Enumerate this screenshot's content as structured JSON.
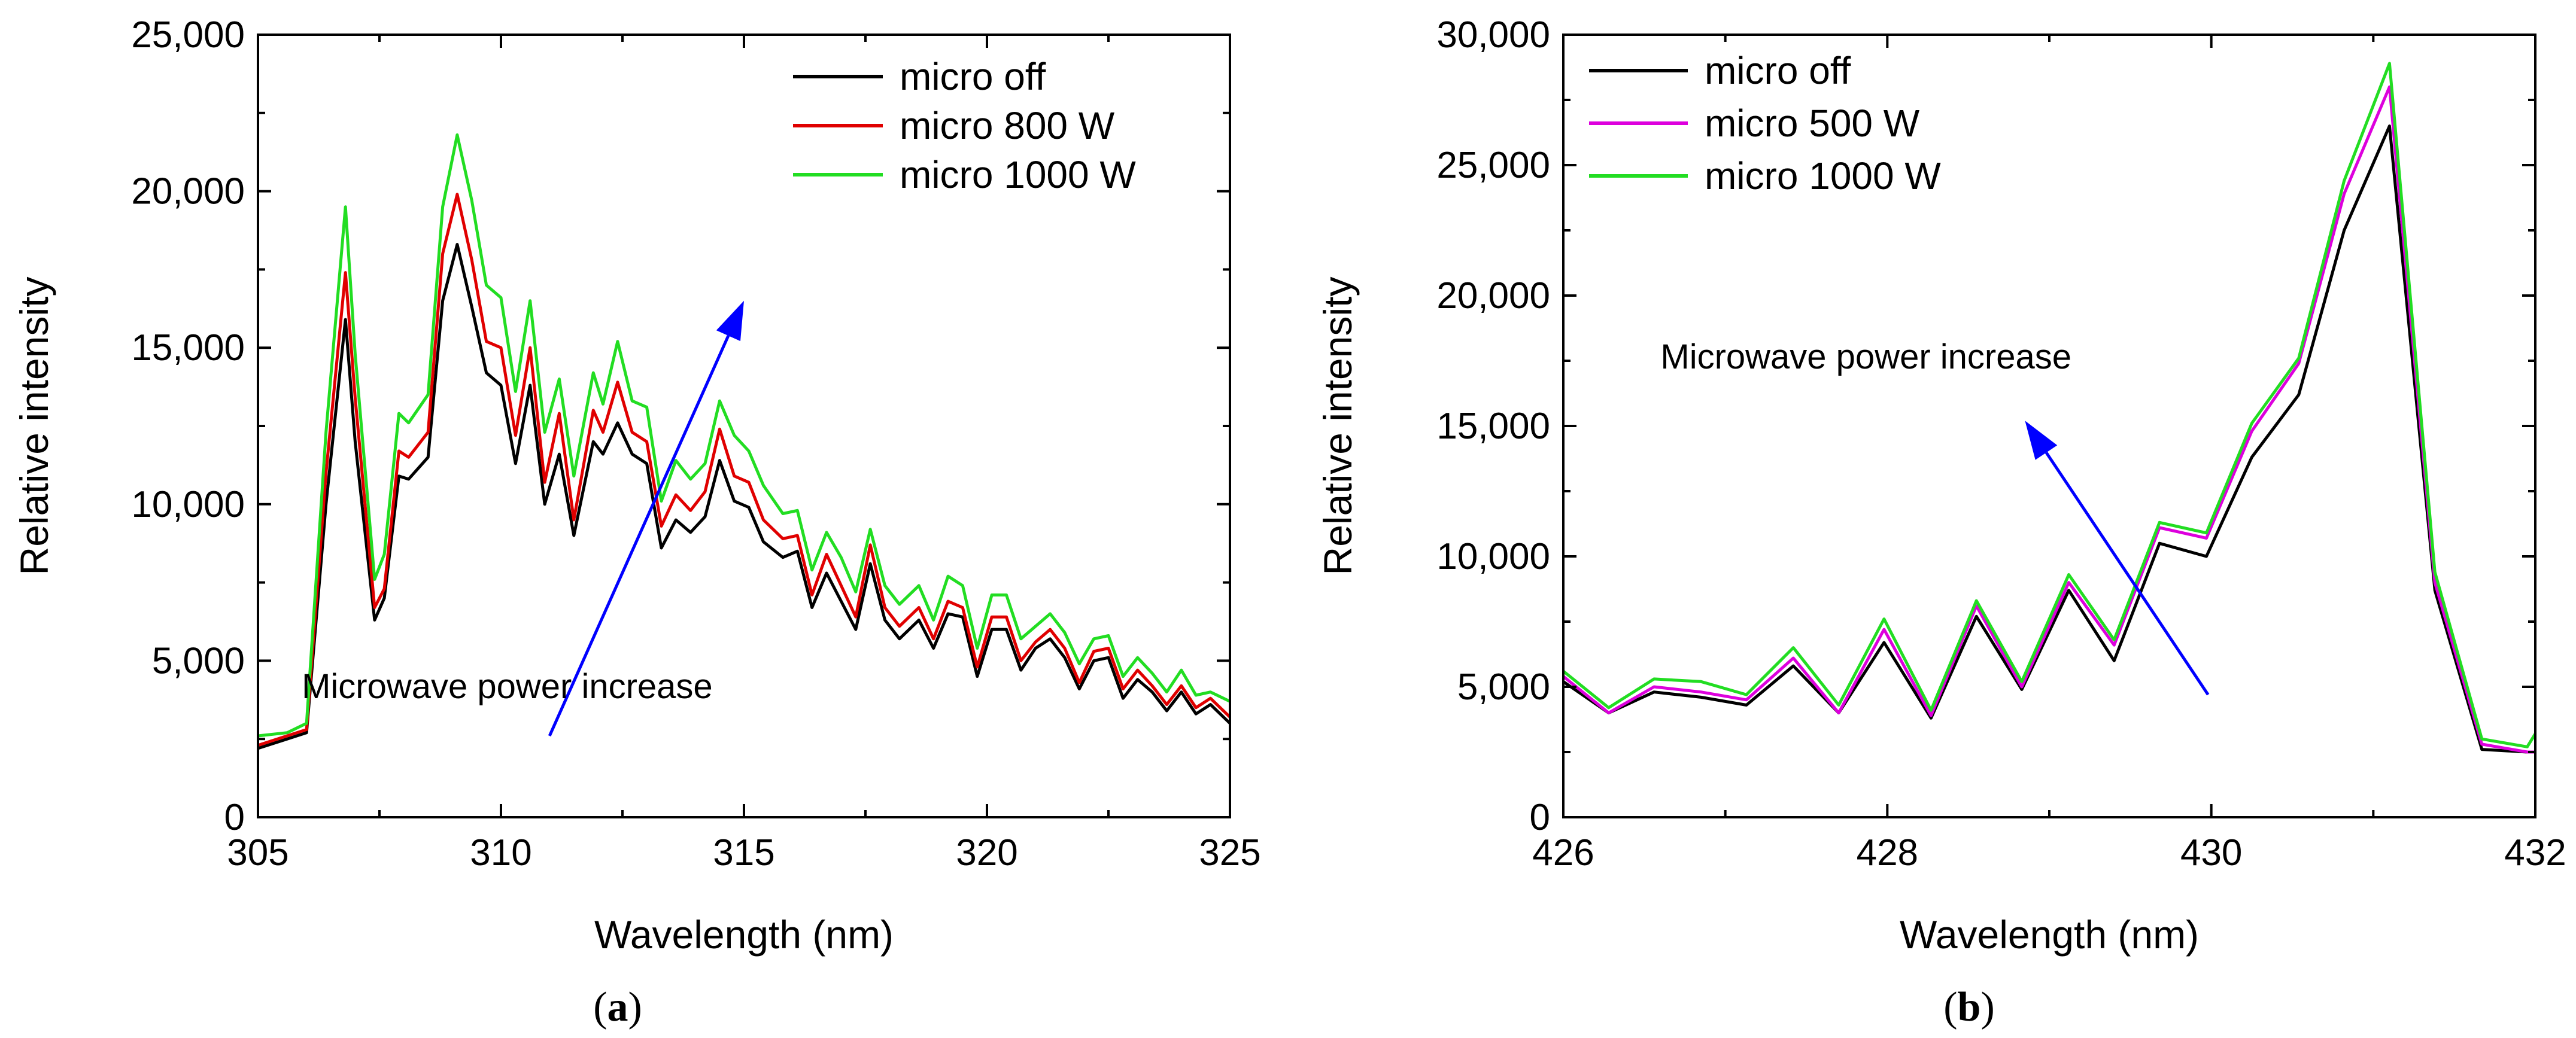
{
  "figure": {
    "panel_labels": [
      "(",
      "a",
      ")",
      "(",
      "b",
      ")"
    ]
  },
  "chart_data": [
    {
      "type": "line",
      "panel": "a",
      "xlabel": "Wavelength (nm)",
      "ylabel": "Relative intensity",
      "xlim": [
        305,
        325
      ],
      "ylim": [
        0,
        25000
      ],
      "xticks": [
        305,
        310,
        315,
        320,
        325
      ],
      "xtick_labels": [
        "305",
        "310",
        "315",
        "320",
        "325"
      ],
      "yticks": [
        0,
        5000,
        10000,
        15000,
        20000,
        25000
      ],
      "ytick_labels": [
        "0",
        "5,000",
        "10,000",
        "15,000",
        "20,000",
        "25,000"
      ],
      "legend_position": "top-right",
      "annotation": {
        "text": "Microwave power increase",
        "arrow_from": [
          311.0,
          2600
        ],
        "arrow_to": [
          315.0,
          16500
        ],
        "text_at": [
          305.9,
          3800
        ],
        "color": "#0000ff"
      },
      "x": [
        305.0,
        305.6,
        306.0,
        306.4,
        306.8,
        307.0,
        307.4,
        307.6,
        307.9,
        308.1,
        308.5,
        308.8,
        309.1,
        309.4,
        309.7,
        310.0,
        310.3,
        310.6,
        310.9,
        311.2,
        311.5,
        311.9,
        312.1,
        312.4,
        312.7,
        313.0,
        313.3,
        313.6,
        313.9,
        314.2,
        314.5,
        314.8,
        315.1,
        315.4,
        315.8,
        316.1,
        316.4,
        316.7,
        317.0,
        317.3,
        317.6,
        317.9,
        318.2,
        318.6,
        318.9,
        319.2,
        319.5,
        319.8,
        320.1,
        320.4,
        320.7,
        321.0,
        321.3,
        321.6,
        321.9,
        322.2,
        322.5,
        322.8,
        323.1,
        323.4,
        323.7,
        324.0,
        324.3,
        324.6,
        325.0
      ],
      "series": [
        {
          "name": "micro off",
          "color": "#000000",
          "values": [
            2200,
            2500,
            2700,
            10000,
            15900,
            12000,
            6300,
            7000,
            10900,
            10800,
            11500,
            16500,
            18300,
            16300,
            14200,
            13800,
            11300,
            13800,
            10000,
            11600,
            9000,
            12000,
            11600,
            12600,
            11600,
            11300,
            8600,
            9500,
            9100,
            9600,
            11400,
            10100,
            9900,
            8800,
            8300,
            8500,
            6700,
            7800,
            6900,
            6000,
            8100,
            6300,
            5700,
            6300,
            5400,
            6500,
            6400,
            4500,
            6000,
            6000,
            4700,
            5400,
            5700,
            5100,
            4100,
            5000,
            5100,
            3800,
            4400,
            4000,
            3400,
            4000,
            3300,
            3600,
            3000
          ]
        },
        {
          "name": "micro 800 W",
          "color": "#e00000",
          "values": [
            2300,
            2600,
            2800,
            11000,
            17400,
            13400,
            6700,
            7300,
            11700,
            11500,
            12300,
            18000,
            19900,
            17800,
            15200,
            15000,
            12200,
            15000,
            10700,
            12900,
            9500,
            13000,
            12300,
            13900,
            12300,
            12000,
            9300,
            10300,
            9800,
            10400,
            12400,
            10900,
            10700,
            9500,
            8900,
            9000,
            7100,
            8400,
            7400,
            6400,
            8700,
            6700,
            6100,
            6700,
            5700,
            6900,
            6700,
            4800,
            6400,
            6400,
            5000,
            5600,
            6000,
            5400,
            4300,
            5300,
            5400,
            4100,
            4700,
            4200,
            3600,
            4200,
            3500,
            3800,
            3200
          ]
        },
        {
          "name": "micro 1000 W",
          "color": "#22dd22",
          "values": [
            2600,
            2700,
            3000,
            12300,
            19500,
            14800,
            7600,
            8400,
            12900,
            12600,
            13500,
            19500,
            21800,
            19700,
            17000,
            16600,
            13600,
            16500,
            12300,
            14000,
            10900,
            14200,
            13200,
            15200,
            13300,
            13100,
            10100,
            11400,
            10800,
            11300,
            13300,
            12200,
            11700,
            10600,
            9700,
            9800,
            7900,
            9100,
            8300,
            7200,
            9200,
            7400,
            6800,
            7400,
            6300,
            7700,
            7400,
            5400,
            7100,
            7100,
            5700,
            6100,
            6500,
            5900,
            4900,
            5700,
            5800,
            4500,
            5100,
            4600,
            4000,
            4700,
            3900,
            4000,
            3700
          ]
        }
      ]
    },
    {
      "type": "line",
      "panel": "b",
      "xlabel": "Wavelength (nm)",
      "ylabel": "Relative intensity",
      "xlim": [
        426,
        432
      ],
      "ylim": [
        0,
        30000
      ],
      "xticks": [
        426,
        428,
        430,
        432
      ],
      "xtick_labels": [
        "426",
        "428",
        "430",
        "432"
      ],
      "yticks": [
        0,
        5000,
        10000,
        15000,
        20000,
        25000,
        30000
      ],
      "ytick_labels": [
        "0",
        "5,000",
        "10,000",
        "15,000",
        "20,000",
        "25,000",
        "30,000"
      ],
      "legend_position": "top-left",
      "annotation": {
        "text": "Microwave power increase",
        "arrow_from": [
          429.98,
          4700
        ],
        "arrow_to": [
          428.85,
          15200
        ],
        "text_at": [
          426.6,
          17200
        ],
        "color": "#0000ff"
      },
      "x": [
        426.0,
        426.28,
        426.56,
        426.85,
        427.13,
        427.42,
        427.7,
        427.98,
        428.27,
        428.55,
        428.83,
        429.12,
        429.4,
        429.68,
        429.97,
        430.25,
        430.54,
        430.82,
        431.1,
        431.38,
        431.67,
        431.95,
        432.0
      ],
      "series": [
        {
          "name": "micro off",
          "color": "#000000",
          "values": [
            5200,
            4000,
            4800,
            4600,
            4300,
            5800,
            4000,
            6700,
            3800,
            7700,
            4900,
            8700,
            6000,
            10500,
            10000,
            13800,
            16200,
            22500,
            26500,
            8700,
            2600,
            2500,
            2500
          ]
        },
        {
          "name": "micro 500 W",
          "color": "#dd00dd",
          "values": [
            5400,
            4000,
            5000,
            4800,
            4500,
            6100,
            4000,
            7200,
            3900,
            8100,
            5000,
            9000,
            6600,
            11100,
            10700,
            14800,
            17400,
            23900,
            28000,
            9000,
            2800,
            2500,
            2500
          ]
        },
        {
          "name": "micro 1000 W",
          "color": "#22dd22",
          "values": [
            5600,
            4200,
            5300,
            5200,
            4700,
            6500,
            4300,
            7600,
            4100,
            8300,
            5200,
            9300,
            6800,
            11300,
            10900,
            15100,
            17600,
            24400,
            28900,
            9400,
            3000,
            2700,
            3200
          ]
        }
      ]
    }
  ]
}
